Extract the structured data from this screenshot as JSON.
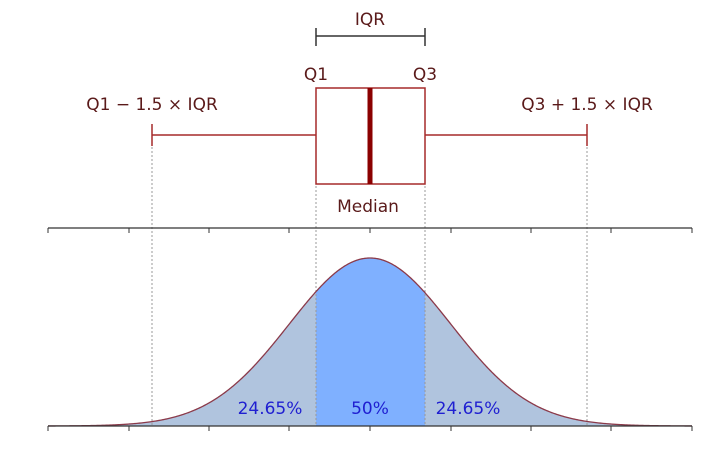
{
  "labels": {
    "iqr": "IQR",
    "q1": "Q1",
    "q3": "Q3",
    "lower_whisker": "Q1 − 1.5 × IQR",
    "upper_whisker": "Q3 + 1.5 × IQR",
    "median": "Median"
  },
  "percentages": {
    "left_tail": "24.65%",
    "middle": "50%",
    "right_tail": "24.65%"
  },
  "colors": {
    "label_text": "#5a1a1a",
    "box_stroke": "#a52a2a",
    "median_line": "#8b0000",
    "axis_line": "#333333",
    "guide_lines": "#999999",
    "tail_fill": "#b0c4de",
    "center_fill": "#7fb0ff",
    "curve_stroke": "#8b3a4a",
    "percent_text": "#1f1fd1"
  }
}
